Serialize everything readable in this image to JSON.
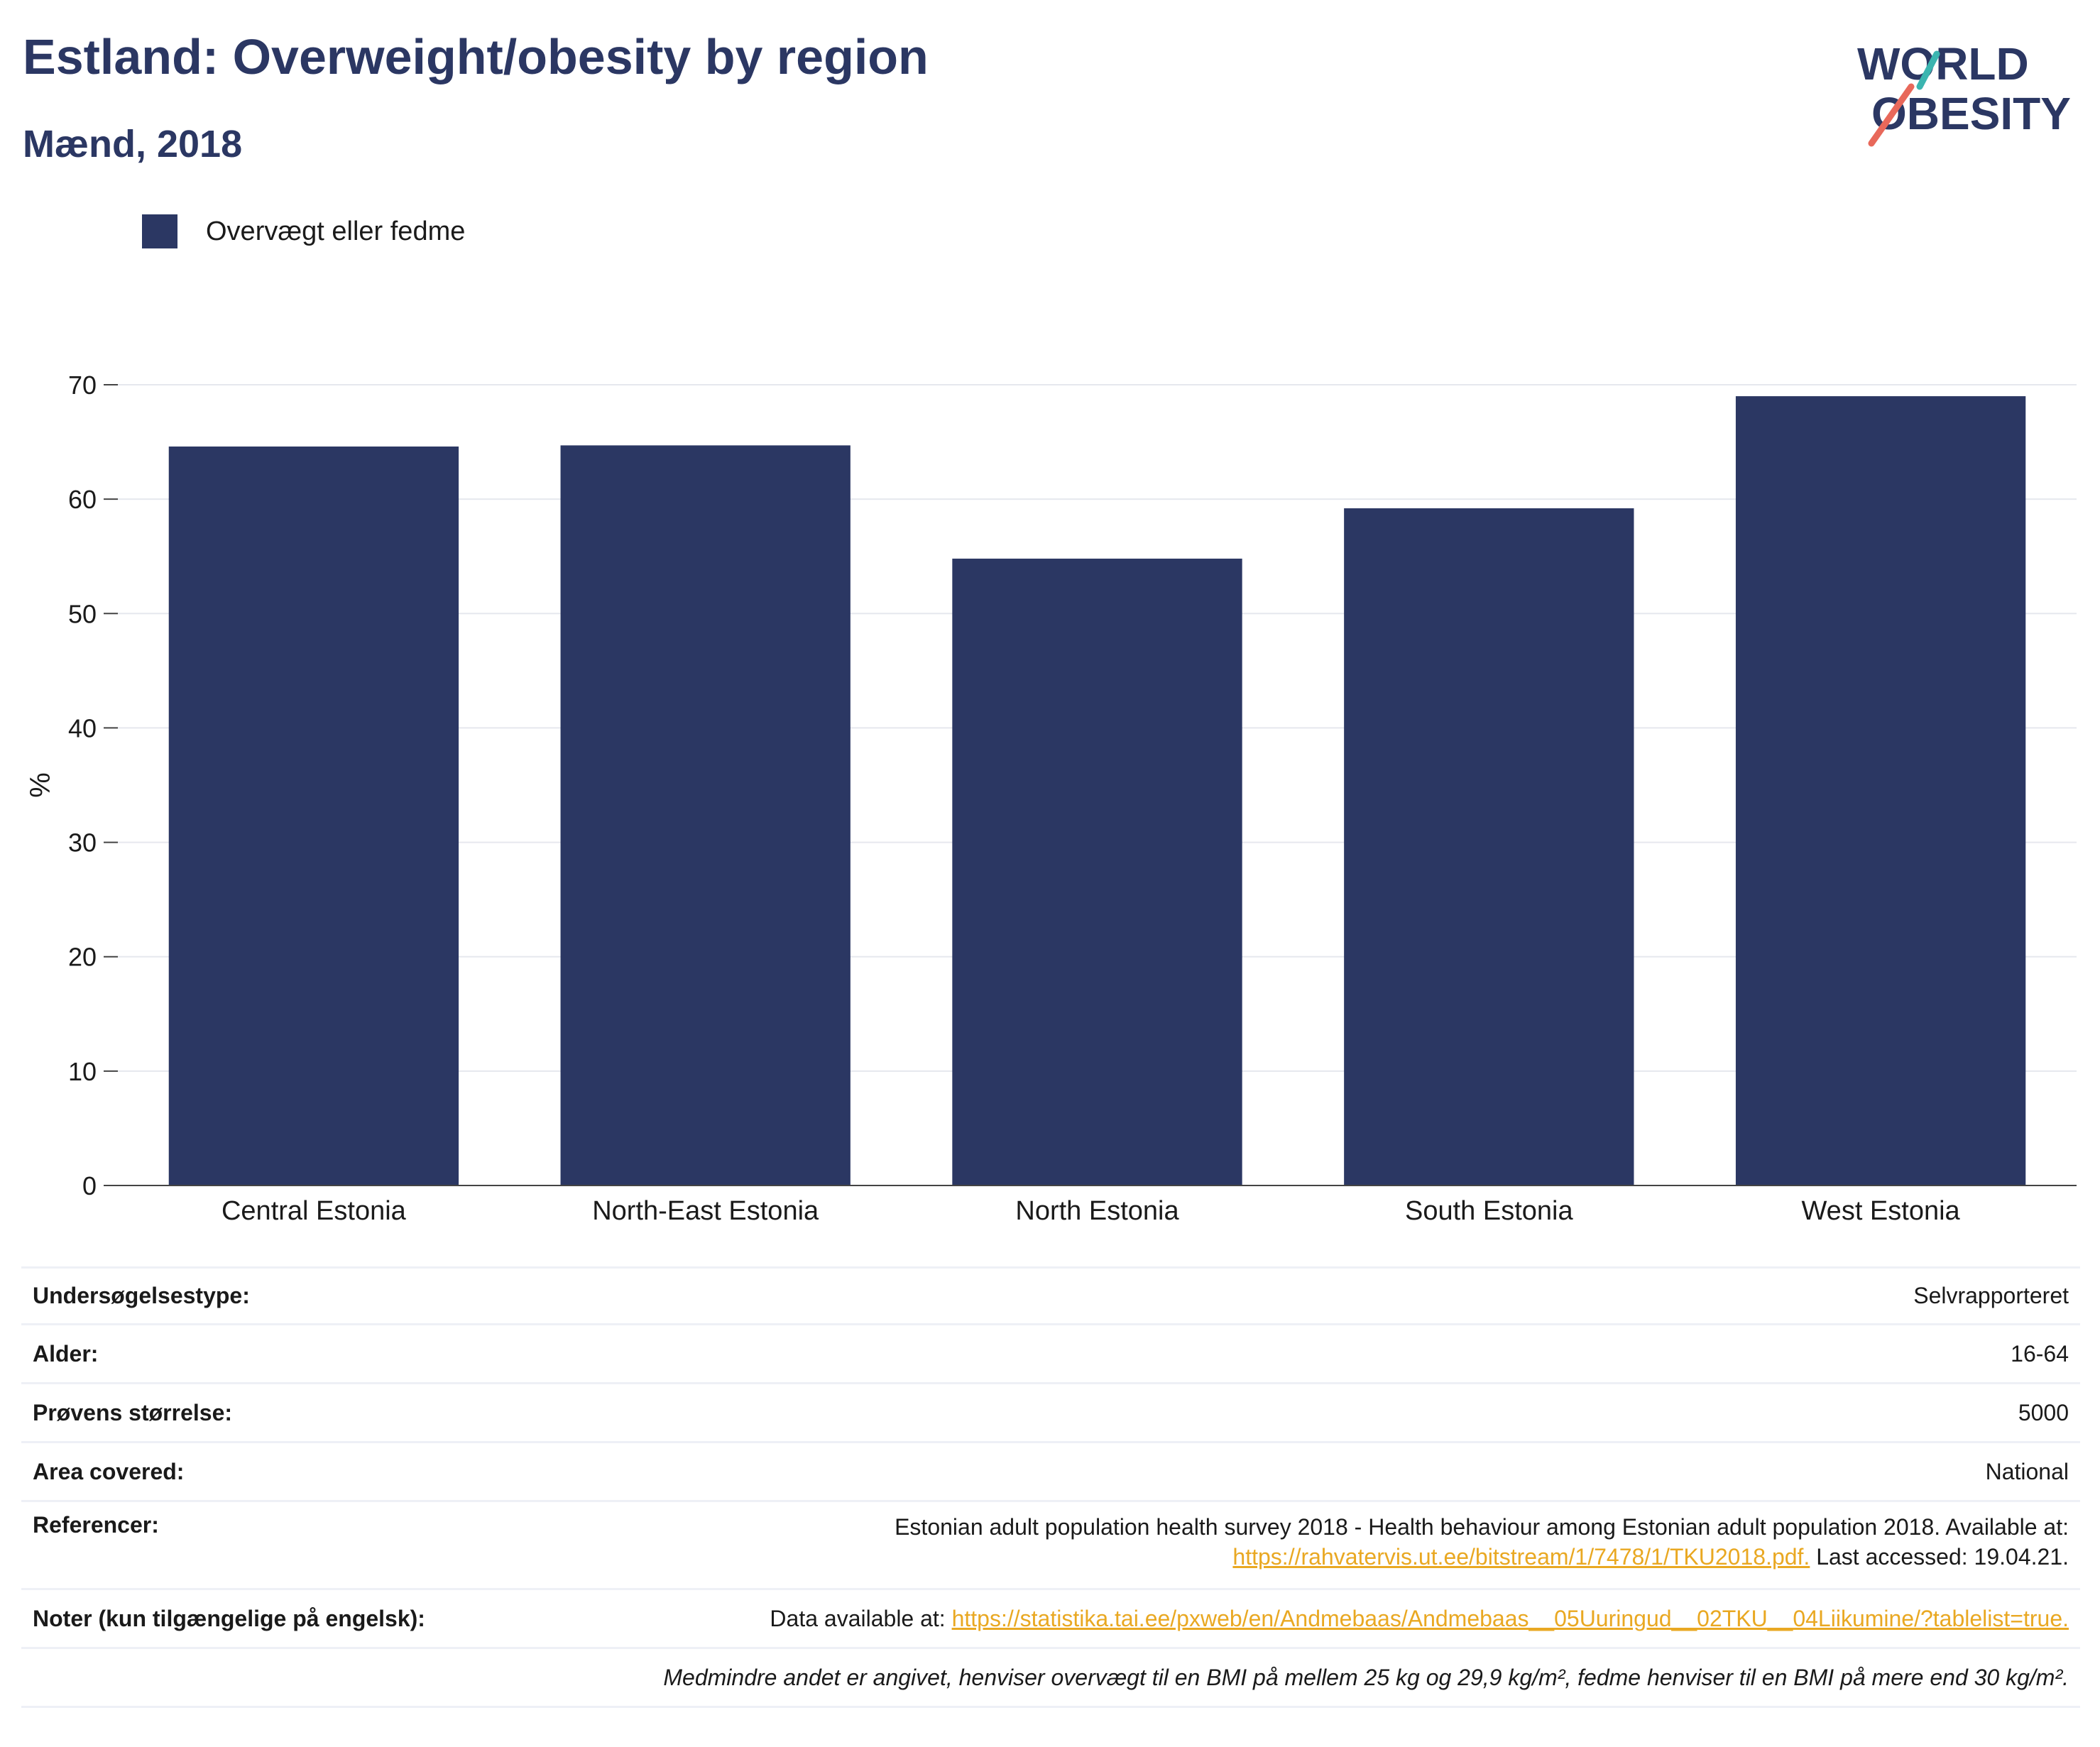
{
  "title": "Estland: Overweight/obesity by region",
  "subtitle": "Mænd, 2018",
  "logo": {
    "line1": "WORLD",
    "line2": "OBESITY",
    "accent_teal": "#3bb5b0",
    "accent_coral": "#e8685a"
  },
  "legend": {
    "label": "Overvægt eller fedme",
    "color": "#2b3763"
  },
  "chart_data": {
    "type": "bar",
    "categories": [
      "Central Estonia",
      "North-East Estonia",
      "North Estonia",
      "South Estonia",
      "West Estonia"
    ],
    "series": [
      {
        "name": "Overvægt eller fedme",
        "values": [
          64.6,
          64.7,
          54.8,
          59.2,
          69.0
        ],
        "color": "#2b3763"
      }
    ],
    "ylabel": "%",
    "xlabel": "",
    "ylim": [
      0,
      70
    ],
    "yticks": [
      0,
      10,
      20,
      30,
      40,
      50,
      60,
      70
    ],
    "grid": true
  },
  "info": {
    "survey_type_label": "Undersøgelsestype:",
    "survey_type_value": "Selvrapporteret",
    "age_label": "Alder:",
    "age_value": "16-64",
    "sample_label": "Prøvens størrelse:",
    "sample_value": "5000",
    "area_label": "Area covered:",
    "area_value": "National",
    "references_label": "Referencer:",
    "references_text": "Estonian adult population health survey 2018 - Health behaviour among Estonian adult population 2018. Available at:",
    "references_link": "https://rahvatervis.ut.ee/bitstream/1/7478/1/TKU2018.pdf.",
    "references_tail": " Last accessed: 19.04.21.",
    "notes_label": "Noter (kun tilgængelige på engelsk):",
    "notes_text": "Data available at: ",
    "notes_link": "https://statistika.tai.ee/pxweb/en/Andmebaas/Andmebaas__05Uuringud__02TKU__04Liikumine/?tablelist=true.",
    "footnote": "Medmindre andet er angivet, henviser overvægt til en BMI på mellem 25 kg og 29,9 kg/m², fedme henviser til en BMI på mere end 30 kg/m²."
  }
}
